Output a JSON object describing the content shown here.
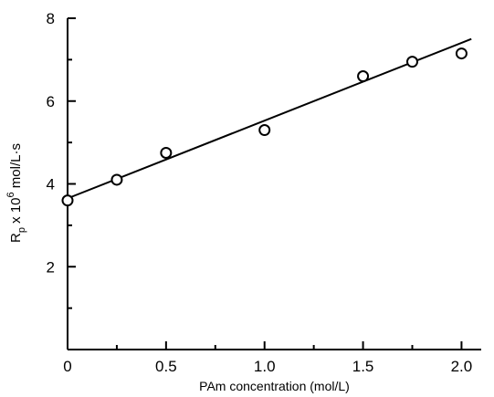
{
  "chart_data": {
    "type": "scatter",
    "title": "",
    "xlabel": "PAm concentration (mol/L)",
    "ylabel": {
      "base": "R",
      "subscript": "p",
      "middle": " x 10",
      "superscript": "6",
      "unit": " mol/L·s"
    },
    "xlim": [
      0,
      2.1
    ],
    "ylim": [
      0,
      8
    ],
    "x_ticks": [
      0,
      0.5,
      1.0,
      1.5,
      2.0
    ],
    "x_tick_labels": [
      "0",
      "0.5",
      "1.0",
      "1.5",
      "2.0"
    ],
    "x_minor_ticks": [
      0.25,
      0.75,
      1.25,
      1.75
    ],
    "y_ticks": [
      2,
      4,
      6,
      8
    ],
    "y_tick_labels": [
      "2",
      "4",
      "6",
      "8"
    ],
    "y_minor_ticks": [
      1,
      3,
      5,
      7
    ],
    "grid": false,
    "series": [
      {
        "points": [
          {
            "x": 0.0,
            "y": 3.6
          },
          {
            "x": 0.25,
            "y": 4.1
          },
          {
            "x": 0.5,
            "y": 4.75
          },
          {
            "x": 1.0,
            "y": 5.3
          },
          {
            "x": 1.5,
            "y": 6.6
          },
          {
            "x": 1.75,
            "y": 6.95
          },
          {
            "x": 2.0,
            "y": 7.15
          }
        ]
      }
    ],
    "fit_line": {
      "x": [
        0.0,
        2.05
      ],
      "y": [
        3.65,
        7.5
      ]
    }
  }
}
